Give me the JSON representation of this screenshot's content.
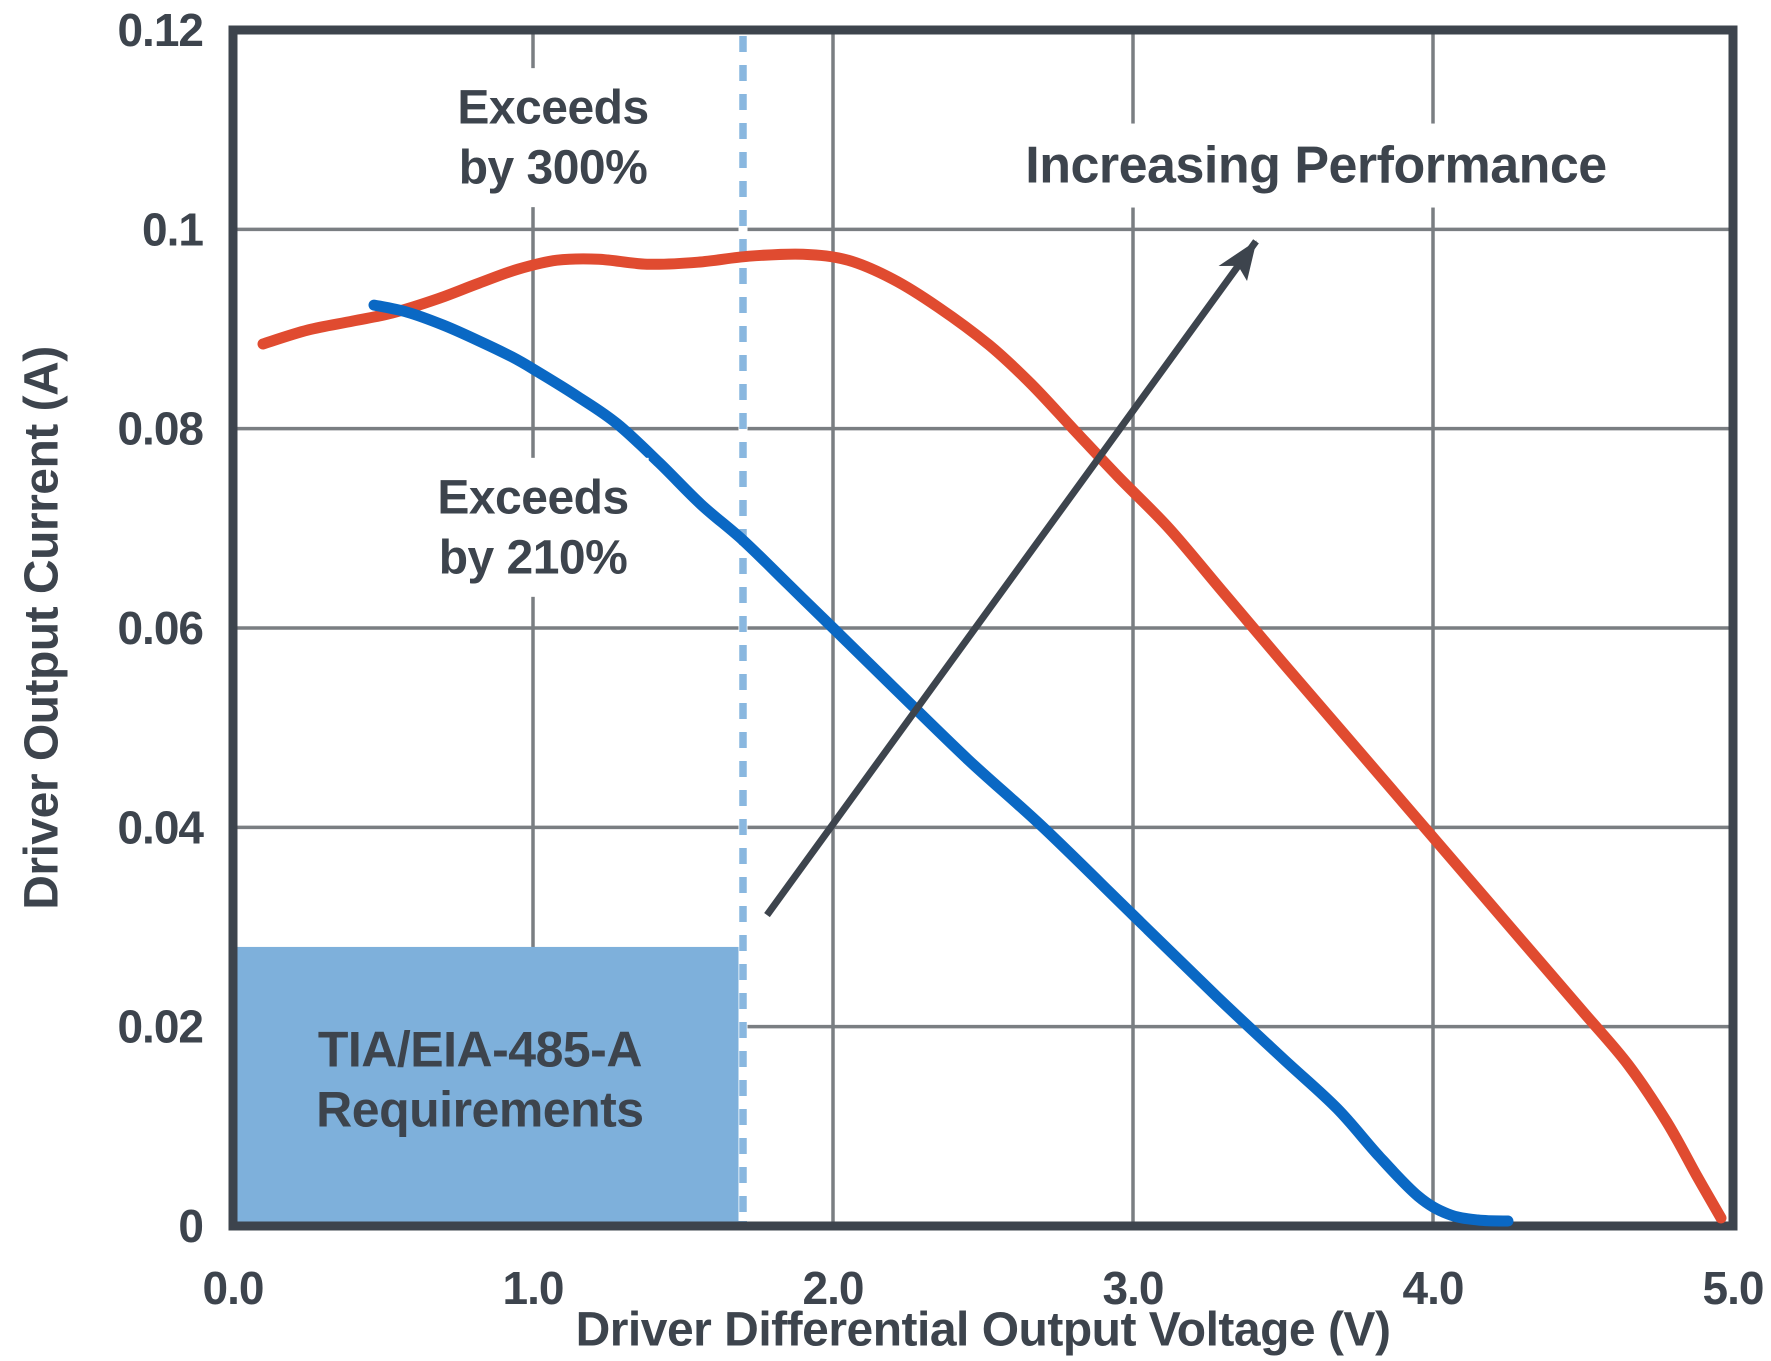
{
  "chart_data": {
    "type": "line",
    "xlabel": "Driver Differential Output Voltage (V)",
    "ylabel": "Driver Output Current (A)",
    "xlim": [
      0.0,
      5.0
    ],
    "ylim": [
      0.0,
      0.12
    ],
    "grid": true,
    "legend_position": "none",
    "x_ticks": {
      "values": [
        0.0,
        1.0,
        2.0,
        3.0,
        4.0,
        5.0
      ],
      "labels": [
        "0.0",
        "1.0",
        "2.0",
        "3.0",
        "4.0",
        "5.0"
      ]
    },
    "y_ticks": {
      "values": [
        0.0,
        0.02,
        0.04,
        0.06,
        0.08,
        0.1,
        0.12
      ],
      "labels": [
        "0",
        "0.02",
        "0.04",
        "0.06",
        "0.08",
        "0.1",
        "0.12"
      ]
    },
    "series": [
      {
        "name": "exceeds-300",
        "label": "Exceeds by 300%",
        "color": "#E04B30",
        "points": [
          [
            0.1,
            0.0885
          ],
          [
            0.25,
            0.0899
          ],
          [
            0.4,
            0.0908
          ],
          [
            0.53,
            0.0916
          ],
          [
            0.68,
            0.093
          ],
          [
            0.82,
            0.0946
          ],
          [
            0.95,
            0.096
          ],
          [
            1.08,
            0.0969
          ],
          [
            1.22,
            0.097
          ],
          [
            1.38,
            0.0965
          ],
          [
            1.55,
            0.0967
          ],
          [
            1.72,
            0.0973
          ],
          [
            1.9,
            0.0975
          ],
          [
            2.05,
            0.0969
          ],
          [
            2.2,
            0.095
          ],
          [
            2.35,
            0.0922
          ],
          [
            2.52,
            0.0884
          ],
          [
            2.66,
            0.0845
          ],
          [
            2.8,
            0.08
          ],
          [
            2.95,
            0.0752
          ],
          [
            3.12,
            0.07
          ],
          [
            3.3,
            0.0636
          ],
          [
            3.5,
            0.0565
          ],
          [
            3.7,
            0.0495
          ],
          [
            3.9,
            0.0425
          ],
          [
            4.1,
            0.0355
          ],
          [
            4.3,
            0.0285
          ],
          [
            4.5,
            0.0215
          ],
          [
            4.65,
            0.0162
          ],
          [
            4.78,
            0.0104
          ],
          [
            4.88,
            0.005
          ],
          [
            4.96,
            0.0008
          ]
        ]
      },
      {
        "name": "exceeds-210",
        "label": "Exceeds by 210%",
        "color": "#0A68C4",
        "points": [
          [
            0.47,
            0.0924
          ],
          [
            0.58,
            0.0917
          ],
          [
            0.7,
            0.0904
          ],
          [
            0.82,
            0.0888
          ],
          [
            0.93,
            0.0872
          ],
          [
            1.0,
            0.086
          ],
          [
            1.15,
            0.0832
          ],
          [
            1.28,
            0.0805
          ],
          [
            1.42,
            0.0766
          ],
          [
            1.56,
            0.0724
          ],
          [
            1.7,
            0.0688
          ],
          [
            1.85,
            0.0644
          ],
          [
            2.0,
            0.06
          ],
          [
            2.2,
            0.0541
          ],
          [
            2.45,
            0.0468
          ],
          [
            2.7,
            0.04
          ],
          [
            3.0,
            0.0312
          ],
          [
            3.28,
            0.023
          ],
          [
            3.5,
            0.0168
          ],
          [
            3.68,
            0.0118
          ],
          [
            3.82,
            0.007
          ],
          [
            3.95,
            0.003
          ],
          [
            4.05,
            0.0012
          ],
          [
            4.15,
            0.0006
          ],
          [
            4.25,
            0.0005
          ]
        ]
      }
    ],
    "requirement_region": {
      "x_range": [
        0.0,
        1.7
      ],
      "y_range": [
        0.0,
        0.028
      ],
      "fill": "#7EB0DB"
    },
    "threshold_line": {
      "x": 1.7,
      "style": "dashed",
      "color": "#89B7DF"
    },
    "arrow": {
      "label": "Increasing Performance",
      "from": [
        1.78,
        0.0312
      ],
      "to": [
        3.41,
        0.0988
      ],
      "color": "#3D444D"
    },
    "annotations": [
      {
        "id": "label-300",
        "lines": [
          "Exceeds",
          "by 300%"
        ],
        "color": "#E04B30",
        "anchor": [
          1.0667,
          0.1092
        ],
        "font": 48,
        "line_height": 60,
        "plate": true
      },
      {
        "id": "label-210",
        "lines": [
          "Exceeds",
          "by 210%"
        ],
        "color": "#0A68C4",
        "anchor": [
          1.0,
          0.0701
        ],
        "font": 48,
        "line_height": 60,
        "plate": true
      },
      {
        "id": "label-performance",
        "lines": [
          "Increasing Performance"
        ],
        "color": "#3D444D",
        "anchor": [
          3.61,
          0.1064
        ],
        "font": 52,
        "line_height": 60,
        "plate": true
      },
      {
        "id": "label-region",
        "lines": [
          "TIA/EIA-485-A",
          "Requirements"
        ],
        "color": "#3D444D",
        "anchor": [
          0.823,
          0.0147
        ],
        "font": 50,
        "line_height": 60,
        "plate": false
      }
    ],
    "colors": {
      "axis": "#3D444D",
      "grid": "#7A7E82",
      "background": "#FFFFFF",
      "red_series": "#E04B30",
      "blue_series": "#0A68C4",
      "region_fill": "#7EB0DB",
      "threshold_dash": "#89B7DF"
    }
  }
}
